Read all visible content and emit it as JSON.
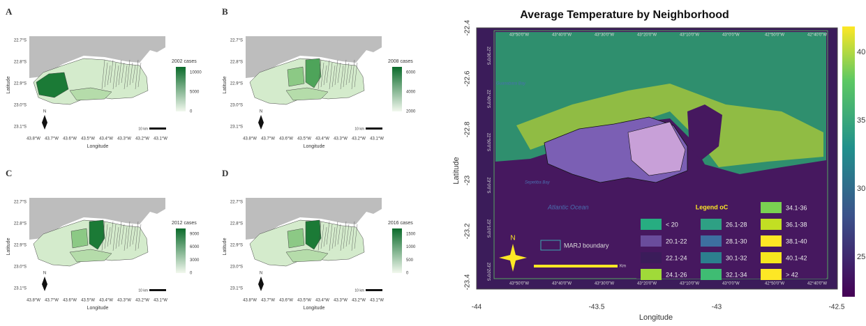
{
  "panels": [
    {
      "label": "A",
      "legend_title": "2002 cases",
      "legend_ticks": [
        "10000",
        "5000",
        "0"
      ]
    },
    {
      "label": "B",
      "legend_title": "2008 cases",
      "legend_ticks": [
        "6000",
        "4000",
        "2000"
      ]
    },
    {
      "label": "C",
      "legend_title": "2012 cases",
      "legend_ticks": [
        "9000",
        "6000",
        "3000",
        "0"
      ]
    },
    {
      "label": "D",
      "legend_title": "2016 cases",
      "legend_ticks": [
        "1500",
        "1000",
        "500",
        "0"
      ]
    }
  ],
  "panel_axes": {
    "x_label": "Longitude",
    "y_label": "Latitude",
    "north": "N",
    "scale": "10 km",
    "lat_ticks": [
      "22.7°S",
      "22.8°S",
      "22.9°S",
      "23.0°S",
      "23.1°S"
    ],
    "lon_ticks": [
      "43.8°W",
      "43.7°W",
      "43.6°W",
      "43.5°W",
      "43.4°W",
      "43.3°W",
      "43.2°W",
      "43.1°W"
    ]
  },
  "main_map": {
    "title": "Average Temperature by Neighborhood",
    "x_label": "Longitude",
    "y_label": "Latitude",
    "xticks": [
      "-44",
      "-43.5",
      "-43",
      "-42.5"
    ],
    "yticks": [
      "-22.4",
      "-22.6",
      "-22.8",
      "-23",
      "-23.2",
      "-23.4"
    ],
    "colorbar_ticks": [
      "40",
      "35",
      "30",
      "25"
    ],
    "top_labels": [
      "43°50'0\"W",
      "43°40'0\"W",
      "43°30'0\"W",
      "43°20'0\"W",
      "43°10'0\"W",
      "43°0'0\"W",
      "42°50'0\"W",
      "42°40'0\"W"
    ],
    "side_labels": [
      "22°30'0\"S",
      "22°40'0\"S",
      "22°50'0\"S",
      "23°0'0\"S",
      "23°10'0\"S",
      "23°20'0\"S"
    ],
    "places": [
      "Guanabara Bay",
      "Sepetiba Bay",
      "Atlantic Ocean"
    ],
    "legend_title": "Legend oC",
    "legend_items": [
      "< 20",
      "20.1-22",
      "22.1-24",
      "24.1-26",
      "26.1-28",
      "28.1-30",
      "30.1-32",
      "32.1-34",
      "34.1-36",
      "36.1-38",
      "38.1-40",
      "40.1-42",
      "> 42"
    ],
    "boundary_label": "MARJ boundary",
    "north": "N",
    "scale_unit": "Km"
  }
}
